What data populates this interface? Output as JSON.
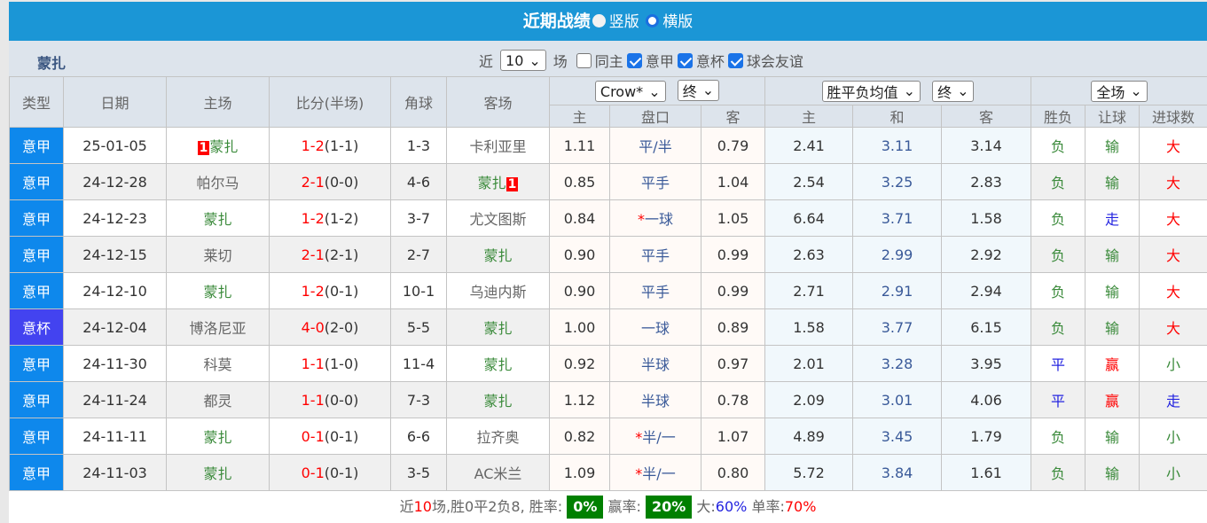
{
  "title": {
    "text": "近期战绩",
    "opt1": "竖版",
    "opt2": "横版"
  },
  "filter": {
    "team": "蒙扎",
    "near": "近",
    "count": "10",
    "unit": "场",
    "same_home": "同主",
    "leagues": [
      "意甲",
      "意杯",
      "球会友谊"
    ]
  },
  "headers": {
    "type": "类型",
    "date": "日期",
    "home": "主场",
    "score": "比分(半场)",
    "corner": "角球",
    "away": "客场",
    "ah_company": "Crow*",
    "ah_time": "终",
    "eu_type": "胜平负均值",
    "eu_time": "终",
    "scope": "全场",
    "sub": [
      "主",
      "盘口",
      "客",
      "主",
      "和",
      "客",
      "胜负",
      "让球",
      "进球数"
    ]
  },
  "rows": [
    {
      "type": "意甲",
      "date": "25-01-05",
      "home": "蒙扎",
      "home_badge": "1",
      "hl": "home",
      "score": "1-2",
      "half": "(1-1)",
      "corner": "1-3",
      "away": "卡利亚里",
      "a1": "1.11",
      "line": "平/半",
      "star": "",
      "a2": "0.79",
      "e1": "2.41",
      "e2": "3.11",
      "e3": "3.14",
      "res": "负",
      "ah": "输",
      "ou": "大"
    },
    {
      "type": "意甲",
      "date": "24-12-28",
      "home": "帕尔马",
      "hl": "away",
      "away_badge": "1",
      "score": "2-1",
      "half": "(0-0)",
      "corner": "4-6",
      "away": "蒙扎",
      "a1": "0.85",
      "line": "平手",
      "star": "",
      "a2": "1.04",
      "e1": "2.54",
      "e2": "3.25",
      "e3": "2.83",
      "res": "负",
      "ah": "输",
      "ou": "大"
    },
    {
      "type": "意甲",
      "date": "24-12-23",
      "home": "蒙扎",
      "hl": "home",
      "score": "1-2",
      "half": "(1-2)",
      "corner": "3-7",
      "away": "尤文图斯",
      "a1": "0.84",
      "line": "一球",
      "star": "*",
      "a2": "1.05",
      "e1": "6.64",
      "e2": "3.71",
      "e3": "1.58",
      "res": "负",
      "ah": "走",
      "ou": "大"
    },
    {
      "type": "意甲",
      "date": "24-12-15",
      "home": "莱切",
      "hl": "away",
      "score": "2-1",
      "half": "(2-1)",
      "corner": "2-7",
      "away": "蒙扎",
      "a1": "0.90",
      "line": "平手",
      "star": "",
      "a2": "0.99",
      "e1": "2.63",
      "e2": "2.99",
      "e3": "2.92",
      "res": "负",
      "ah": "输",
      "ou": "大"
    },
    {
      "type": "意甲",
      "date": "24-12-10",
      "home": "蒙扎",
      "hl": "home",
      "score": "1-2",
      "half": "(0-1)",
      "corner": "10-1",
      "away": "乌迪内斯",
      "a1": "0.90",
      "line": "平手",
      "star": "",
      "a2": "0.99",
      "e1": "2.71",
      "e2": "2.91",
      "e3": "2.94",
      "res": "负",
      "ah": "输",
      "ou": "大"
    },
    {
      "type": "意杯",
      "date": "24-12-04",
      "home": "博洛尼亚",
      "hl": "away",
      "score": "4-0",
      "half": "(2-0)",
      "corner": "5-5",
      "away": "蒙扎",
      "a1": "1.00",
      "line": "一球",
      "star": "",
      "a2": "0.89",
      "e1": "1.58",
      "e2": "3.77",
      "e3": "6.15",
      "res": "负",
      "ah": "输",
      "ou": "大"
    },
    {
      "type": "意甲",
      "date": "24-11-30",
      "home": "科莫",
      "hl": "away",
      "score": "1-1",
      "half": "(1-0)",
      "corner": "11-4",
      "away": "蒙扎",
      "a1": "0.92",
      "line": "半球",
      "star": "",
      "a2": "0.97",
      "e1": "2.01",
      "e2": "3.28",
      "e3": "3.95",
      "res": "平",
      "ah": "赢",
      "ou": "小"
    },
    {
      "type": "意甲",
      "date": "24-11-24",
      "home": "都灵",
      "hl": "away",
      "score": "1-1",
      "half": "(0-0)",
      "corner": "7-3",
      "away": "蒙扎",
      "a1": "1.12",
      "line": "半球",
      "star": "",
      "a2": "0.78",
      "e1": "2.09",
      "e2": "3.01",
      "e3": "4.06",
      "res": "平",
      "ah": "赢",
      "ou": "走"
    },
    {
      "type": "意甲",
      "date": "24-11-11",
      "home": "蒙扎",
      "hl": "home",
      "score": "0-1",
      "half": "(0-1)",
      "corner": "6-6",
      "away": "拉齐奥",
      "a1": "0.82",
      "line": "半/一",
      "star": "*",
      "a2": "1.07",
      "e1": "4.89",
      "e2": "3.45",
      "e3": "1.79",
      "res": "负",
      "ah": "输",
      "ou": "小"
    },
    {
      "type": "意甲",
      "date": "24-11-03",
      "home": "蒙扎",
      "hl": "home",
      "score": "0-1",
      "half": "(0-1)",
      "corner": "3-5",
      "away": "AC米兰",
      "a1": "1.09",
      "line": "半/一",
      "star": "*",
      "a2": "0.80",
      "e1": "5.72",
      "e2": "3.84",
      "e3": "1.61",
      "res": "负",
      "ah": "输",
      "ou": "小"
    }
  ],
  "summary": {
    "p1": "近",
    "n": "10",
    "p2": "场,胜0平2负8, 胜率:",
    "win_rate": "0%",
    "p3": "赢率:",
    "cover_rate": "20%",
    "p4": "大:",
    "over_rate": "60%",
    "p5": "单率:",
    "odd_rate": "70%"
  },
  "colors": {
    "title_bar": "#1b96d6",
    "league": "#0e88ec",
    "cup": "#4343f0",
    "rate_box": "#008000"
  }
}
